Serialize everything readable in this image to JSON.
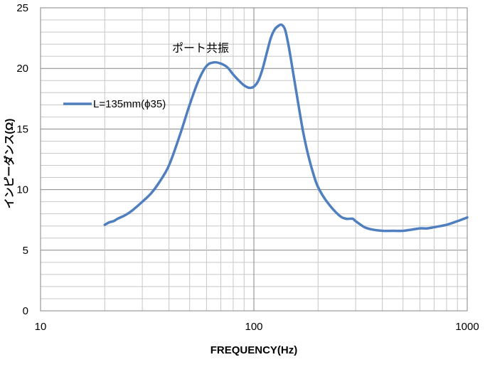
{
  "chart_data": {
    "type": "line",
    "title": "",
    "xlabel": "FREQUENCY(Hz)",
    "ylabel": "インピーダンス(Ω)",
    "x_scale": "log",
    "xlim": [
      10,
      1000
    ],
    "ylim": [
      0,
      25
    ],
    "x_ticks": [
      "10",
      "100",
      "1000"
    ],
    "y_ticks": [
      "0",
      "5",
      "10",
      "15",
      "20",
      "25"
    ],
    "grid": true,
    "legend_position": "left",
    "annotation": "ポート共振",
    "series": [
      {
        "name": "L=135mm(ϕ35)",
        "color": "#4f7fbf",
        "x": [
          20,
          21,
          22,
          23,
          25,
          27,
          30,
          33,
          36,
          40,
          45,
          50,
          55,
          60,
          65,
          70,
          75,
          80,
          85,
          90,
          95,
          100,
          105,
          110,
          115,
          120,
          125,
          130,
          135,
          140,
          145,
          150,
          160,
          170,
          180,
          190,
          200,
          220,
          250,
          270,
          290,
          300,
          330,
          360,
          400,
          450,
          500,
          550,
          600,
          650,
          700,
          800,
          900,
          1000
        ],
        "y": [
          7.1,
          7.3,
          7.4,
          7.6,
          7.9,
          8.3,
          9.0,
          9.7,
          10.6,
          12.0,
          14.5,
          17.0,
          19.0,
          20.2,
          20.5,
          20.4,
          20.1,
          19.5,
          19.0,
          18.6,
          18.4,
          18.5,
          19.0,
          20.0,
          21.3,
          22.5,
          23.2,
          23.5,
          23.6,
          23.2,
          22.0,
          20.5,
          17.5,
          14.8,
          12.8,
          11.3,
          10.2,
          9.0,
          7.9,
          7.6,
          7.6,
          7.4,
          6.9,
          6.7,
          6.6,
          6.6,
          6.6,
          6.7,
          6.8,
          6.8,
          6.9,
          7.1,
          7.4,
          7.7
        ]
      }
    ]
  }
}
